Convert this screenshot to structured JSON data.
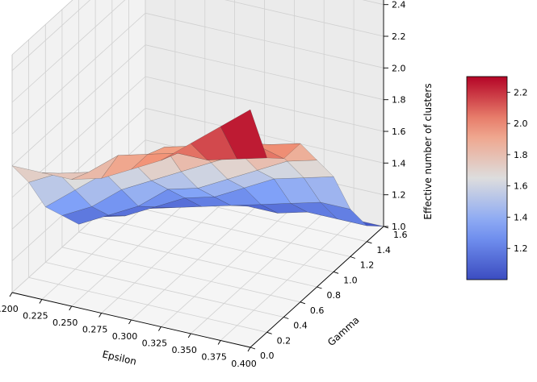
{
  "chart_data": {
    "type": "surface3d",
    "title": "",
    "xlabel": "Epsilon",
    "ylabel": "Gamma",
    "zlabel": "Effective number of clusters",
    "x_ticks": [
      "0.200",
      "0.225",
      "0.250",
      "0.275",
      "0.300",
      "0.325",
      "0.350",
      "0.375",
      "0.400"
    ],
    "y_ticks": [
      "0.0",
      "0.2",
      "0.4",
      "0.6",
      "0.8",
      "1.0",
      "1.2",
      "1.4",
      "1.6"
    ],
    "z_ticks": [
      "1.0",
      "1.2",
      "1.4",
      "1.6",
      "1.8",
      "2.0",
      "2.2",
      "2.4"
    ],
    "xlim": [
      0.2,
      0.4
    ],
    "ylim": [
      0.0,
      1.6
    ],
    "zlim": [
      1.0,
      2.5
    ],
    "x": [
      0.2,
      0.225,
      0.25,
      0.275,
      0.3,
      0.325,
      0.35,
      0.375,
      0.4
    ],
    "y": [
      0.0,
      0.2,
      0.4,
      0.6,
      0.8,
      1.0,
      1.2,
      1.4,
      1.6
    ],
    "z": [
      [
        1.8,
        1.8,
        1.8,
        1.85,
        1.95,
        2.05,
        2.2,
        2.35,
        2.5
      ],
      [
        1.6,
        1.7,
        1.75,
        1.9,
        1.95,
        2.0,
        2.0,
        2.05,
        2.1
      ],
      [
        1.35,
        1.5,
        1.65,
        1.75,
        1.9,
        1.95,
        2.0,
        2.05,
        2.0
      ],
      [
        1.2,
        1.3,
        1.45,
        1.55,
        1.65,
        1.75,
        1.85,
        1.95,
        2.0
      ],
      [
        1.05,
        1.15,
        1.25,
        1.4,
        1.45,
        1.55,
        1.65,
        1.75,
        1.8
      ],
      [
        1.0,
        1.05,
        1.15,
        1.25,
        1.3,
        1.4,
        1.5,
        1.55,
        1.6
      ],
      [
        1.0,
        1.0,
        1.05,
        1.1,
        1.15,
        1.2,
        1.25,
        1.3,
        1.3
      ],
      [
        1.0,
        1.0,
        1.0,
        1.05,
        1.05,
        1.05,
        1.1,
        1.1,
        1.1
      ],
      [
        1.0,
        1.0,
        1.0,
        1.0,
        1.0,
        1.0,
        1.0,
        1.0,
        1.0
      ]
    ],
    "colormap": "coolwarm",
    "colorbar": {
      "ticks": [
        "1.2",
        "1.4",
        "1.6",
        "1.8",
        "2.0",
        "2.2"
      ],
      "range": [
        1.0,
        2.3
      ]
    },
    "grid": true
  }
}
